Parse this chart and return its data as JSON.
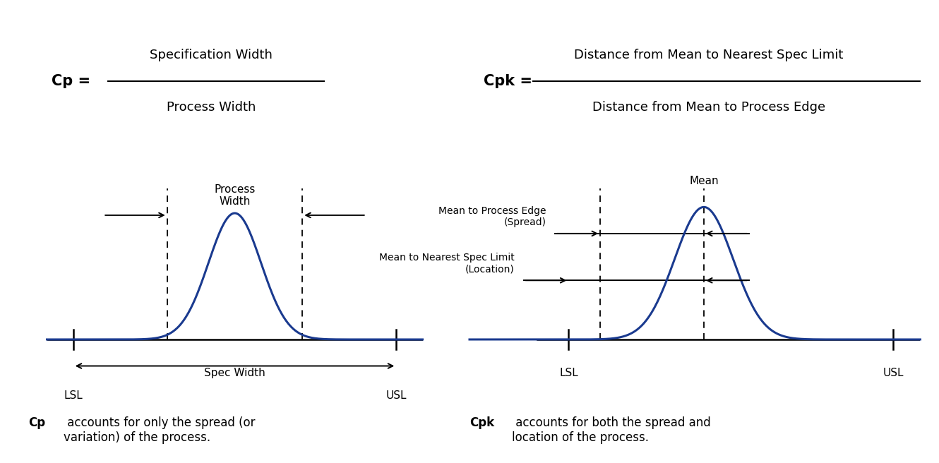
{
  "bg_color": "#ffffff",
  "curve_color": "#1a3a8f",
  "line_color": "#000000",
  "text_color": "#000000",
  "cp_label": "Cp =",
  "cp_numerator": "Specification Width",
  "cp_denominator": "Process Width",
  "cpk_label": "Cpk =",
  "cpk_numerator": "Distance from Mean to Nearest Spec Limit",
  "cpk_denominator": "Distance from Mean to Process Edge",
  "cp_desc_bold": "Cp",
  "cp_desc_rest": " accounts for only the spread (or\nvariation) of the process.",
  "cpk_desc_bold": "Cpk",
  "cpk_desc_rest": " accounts for both the spread and\nlocation of the process.",
  "lsl_label": "LSL",
  "usl_label": "USL",
  "process_width_label": "Process\nWidth",
  "spec_width_label": "Spec Width",
  "mean_label": "Mean",
  "mean_to_edge_label": "Mean to Process Edge\n(Spread)",
  "mean_to_spec_label": "Mean to Nearest Spec Limit\n(Location)",
  "formula_fontsize": 13,
  "label_fontsize": 11,
  "desc_fontsize": 12,
  "arrow_fontsize": 10
}
